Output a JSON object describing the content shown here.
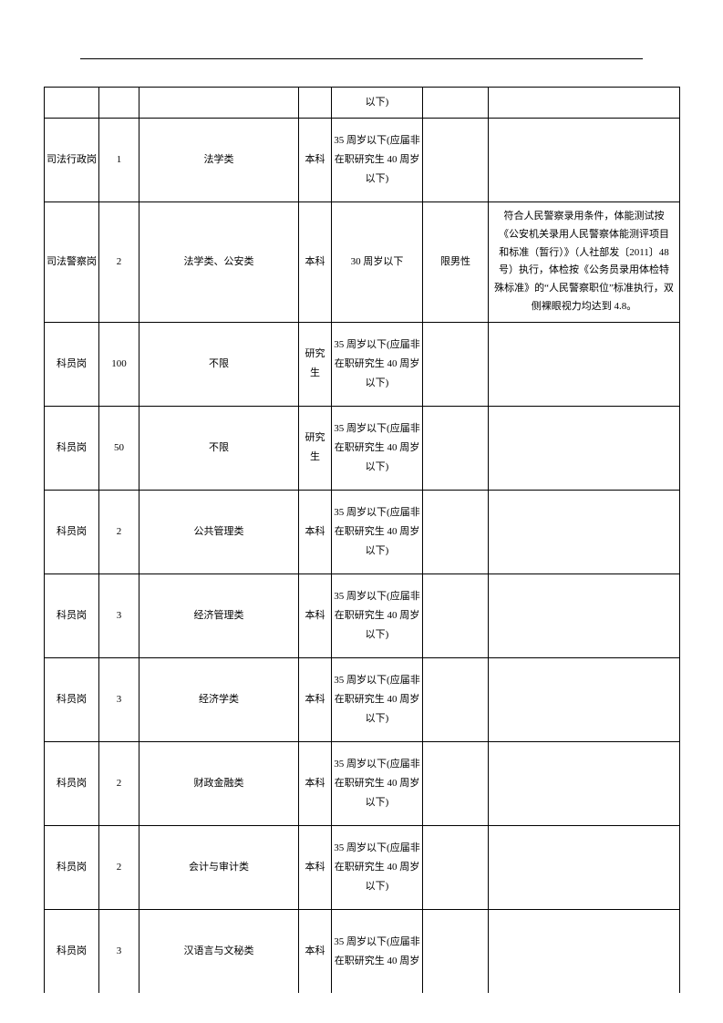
{
  "table": {
    "colors": {
      "border": "#000000",
      "text": "#000000",
      "background": "#ffffff"
    },
    "font_size_pt": 11,
    "rows": [
      {
        "c1": "",
        "c2": "",
        "c3": "",
        "c4": "",
        "c5": "以下)",
        "c6": "",
        "c7": "",
        "height_class": "row-h-small"
      },
      {
        "c1": "司法行政岗",
        "c2": "1",
        "c3": "法学类",
        "c4": "本科",
        "c5": "35 周岁以下(应届非在职研究生 40 周岁以下)",
        "c6": "",
        "c7": "",
        "height_class": "row-h-med"
      },
      {
        "c1": "司法警察岗",
        "c2": "2",
        "c3": "法学类、公安类",
        "c4": "本科",
        "c5": "30 周岁以下",
        "c6": "限男性",
        "c7": "符合人民警察录用条件，体能测试按《公安机关录用人民警察体能测评项目和标准（暂行）》（人社部发〔2011〕48 号）执行，体检按《公务员录用体检特殊标准》的“人民警察职位”标准执行，双侧裸眼视力均达到 4.8。",
        "height_class": "row-h-large"
      },
      {
        "c1": "科员岗",
        "c2": "100",
        "c3": "不限",
        "c4": "研究生",
        "c5": "35 周岁以下(应届非在职研究生 40 周岁以下)",
        "c6": "",
        "c7": "",
        "height_class": "row-h-med"
      },
      {
        "c1": "科员岗",
        "c2": "50",
        "c3": "不限",
        "c4": "研究生",
        "c5": "35 周岁以下(应届非在职研究生 40 周岁以下)",
        "c6": "",
        "c7": "",
        "height_class": "row-h-med"
      },
      {
        "c1": "科员岗",
        "c2": "2",
        "c3": "公共管理类",
        "c4": "本科",
        "c5": "35 周岁以下(应届非在职研究生 40 周岁以下)",
        "c6": "",
        "c7": "",
        "height_class": "row-h-med"
      },
      {
        "c1": "科员岗",
        "c2": "3",
        "c3": "经济管理类",
        "c4": "本科",
        "c5": "35 周岁以下(应届非在职研究生 40 周岁以下)",
        "c6": "",
        "c7": "",
        "height_class": "row-h-med"
      },
      {
        "c1": "科员岗",
        "c2": "3",
        "c3": "经济学类",
        "c4": "本科",
        "c5": "35 周岁以下(应届非在职研究生 40 周岁以下)",
        "c6": "",
        "c7": "",
        "height_class": "row-h-med"
      },
      {
        "c1": "科员岗",
        "c2": "2",
        "c3": "财政金融类",
        "c4": "本科",
        "c5": "35 周岁以下(应届非在职研究生 40 周岁以下)",
        "c6": "",
        "c7": "",
        "height_class": "row-h-med"
      },
      {
        "c1": "科员岗",
        "c2": "2",
        "c3": "会计与审计类",
        "c4": "本科",
        "c5": "35 周岁以下(应届非在职研究生 40 周岁以下)",
        "c6": "",
        "c7": "",
        "height_class": "row-h-med"
      },
      {
        "c1": "科员岗",
        "c2": "3",
        "c3": "汉语言与文秘类",
        "c4": "本科",
        "c5": "35 周岁以下(应届非在职研究生 40 周岁",
        "c6": "",
        "c7": "",
        "height_class": "row-h-med last-row"
      }
    ]
  }
}
